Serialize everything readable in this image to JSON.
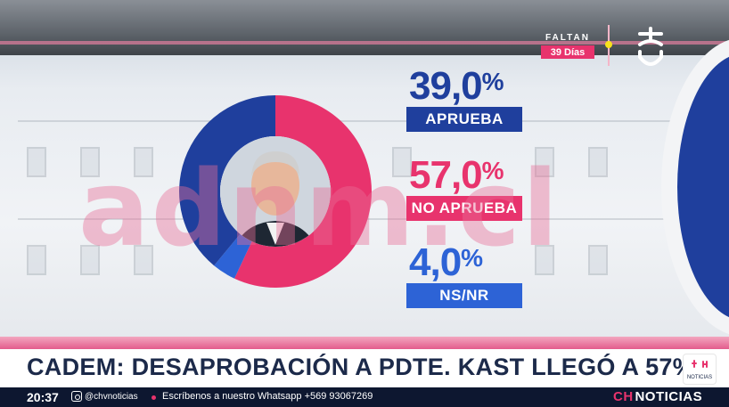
{
  "countdown": {
    "label": "FALTAN",
    "value": "39 Días"
  },
  "poll": {
    "approve": {
      "value": "39,0",
      "unit": "%",
      "label": "APRUEBA",
      "share": 39.0,
      "color": "#1f3f9d"
    },
    "disapprove": {
      "value": "57,0",
      "unit": "%",
      "label": "NO APRUEBA",
      "share": 57.0,
      "color": "#e8336d"
    },
    "nsnr": {
      "value": "4,0",
      "unit": "%",
      "label": "NS/NR",
      "share": 4.0,
      "color": "#2d63d6"
    }
  },
  "watermark": "adnm.cl",
  "headline": "CADEM: DESAPROBACIÓN A PDTE. KAST LLEGÓ A 57%",
  "ticker": {
    "time": "20:37",
    "handle": "@chvnoticias",
    "message": "Escríbenos a nuestro Whatsapp +569 93067269",
    "brand_prefix": "CH",
    "brand_suffix": "NOTICIAS"
  },
  "badge": {
    "text": "NOTICIAS"
  },
  "icons": [
    "instagram-icon",
    "chv-logo-icon",
    "politician-photo"
  ]
}
